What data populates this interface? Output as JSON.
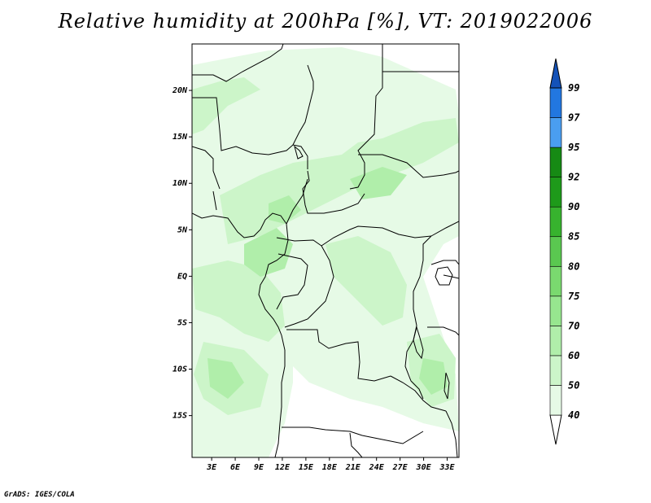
{
  "title": "Relative humidity at 200hPa [%], VT: 2019022006",
  "credit": "GrADS: IGES/COLA",
  "map": {
    "lat_labels": [
      {
        "label": "20N",
        "lat": 20
      },
      {
        "label": "15N",
        "lat": 15
      },
      {
        "label": "10N",
        "lat": 10
      },
      {
        "label": "5N",
        "lat": 5
      },
      {
        "label": "EQ",
        "lat": 0
      },
      {
        "label": "5S",
        "lat": -5
      },
      {
        "label": "10S",
        "lat": -10
      },
      {
        "label": "15S",
        "lat": -15
      }
    ],
    "lon_labels": [
      {
        "label": "3E",
        "lon": 3
      },
      {
        "label": "6E",
        "lon": 6
      },
      {
        "label": "9E",
        "lon": 9
      },
      {
        "label": "12E",
        "lon": 12
      },
      {
        "label": "15E",
        "lon": 15
      },
      {
        "label": "18E",
        "lon": 18
      },
      {
        "label": "21E",
        "lon": 21
      },
      {
        "label": "24E",
        "lon": 24
      },
      {
        "label": "27E",
        "lon": 27
      },
      {
        "label": "30E",
        "lon": 30
      },
      {
        "label": "33E",
        "lon": 33
      }
    ],
    "lon_range": [
      0.5,
      34.5
    ],
    "lat_range": [
      -19.5,
      25.0
    ]
  },
  "colorbar": {
    "levels": [
      "40",
      "50",
      "60",
      "70",
      "75",
      "80",
      "85",
      "90",
      "92",
      "95",
      "97",
      "99"
    ],
    "colors": [
      "#ffffff",
      "#e6fae6",
      "#ccf5c9",
      "#b0eeaa",
      "#97e68f",
      "#7ad96f",
      "#5ac850",
      "#37b32e",
      "#1e9a1a",
      "#168a14",
      "#4a9ef0",
      "#2277e0",
      "#1452b8"
    ]
  }
}
